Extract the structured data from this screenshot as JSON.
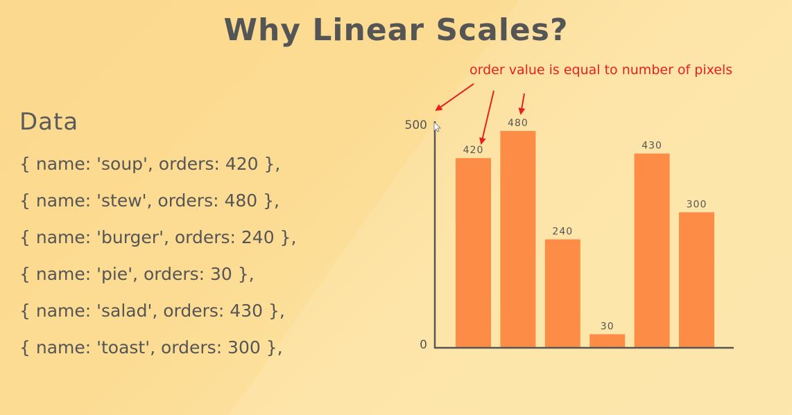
{
  "title": "Why Linear Scales?",
  "data_panel": {
    "heading": "Data",
    "lines": [
      "{ name: 'soup', orders: 420 },",
      "{ name: 'stew', orders: 480 },",
      "{ name: 'burger', orders: 240 },",
      "{ name: 'pie', orders: 30 },",
      "{ name: 'salad', orders: 430 },",
      "{ name: 'toast', orders: 300 },"
    ]
  },
  "annotation": "order value is equal to number of pixels",
  "colors": {
    "bar": "#fd8c46",
    "annotation": "#e8201c",
    "axis": "#555555"
  },
  "chart_data": {
    "type": "bar",
    "categories": [
      "soup",
      "stew",
      "burger",
      "pie",
      "salad",
      "toast"
    ],
    "values": [
      420,
      480,
      240,
      30,
      430,
      300
    ],
    "data_labels": [
      "420",
      "480",
      "240",
      "30",
      "430",
      "300"
    ],
    "y_tick_labels": [
      "500",
      "0"
    ],
    "ylim": [
      0,
      500
    ],
    "grid": false,
    "legend": "none",
    "title": "",
    "xlabel": "",
    "ylabel": ""
  }
}
